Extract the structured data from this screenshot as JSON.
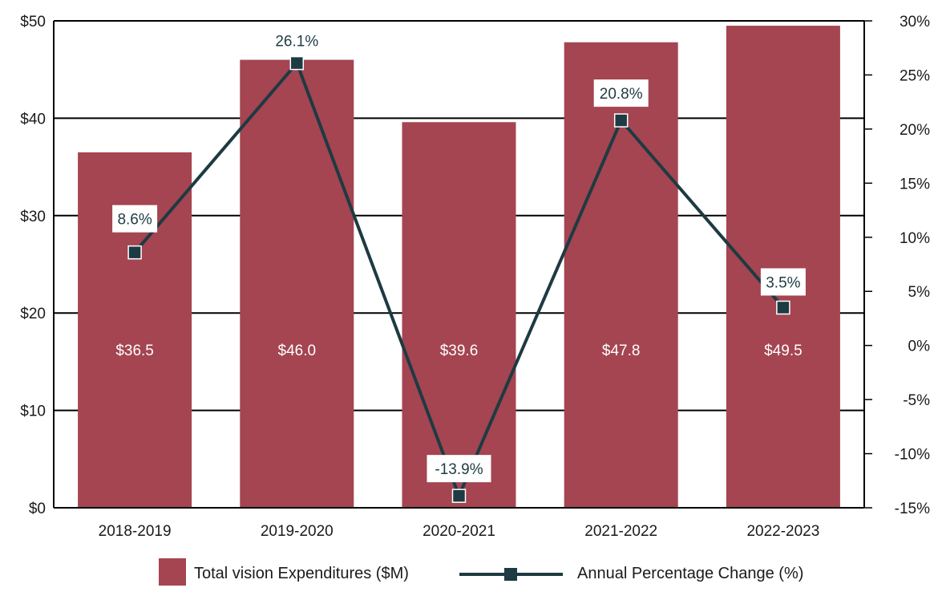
{
  "chart_data": {
    "type": "bar+line",
    "categories": [
      "2018-2019",
      "2019-2020",
      "2020-2021",
      "2021-2022",
      "2022-2023"
    ],
    "series": [
      {
        "name": "Total vision Expenditures ($M)",
        "type": "bar",
        "axis": "left",
        "values": [
          36.5,
          46.0,
          39.6,
          47.8,
          49.5
        ],
        "labels": [
          "$36.5",
          "$46.0",
          "$39.6",
          "$47.8",
          "$49.5"
        ]
      },
      {
        "name": "Annual Percentage Change (%)",
        "type": "line",
        "axis": "right",
        "values": [
          8.6,
          26.1,
          -13.9,
          20.8,
          3.5
        ],
        "labels": [
          "8.6%",
          "26.1%",
          "-13.9%",
          "20.8%",
          "3.5%"
        ]
      }
    ],
    "y_left": {
      "lim": [
        0,
        50
      ],
      "ticks": [
        0,
        10,
        20,
        30,
        40,
        50
      ],
      "tick_labels": [
        "$0",
        "$10",
        "$20",
        "$30",
        "$40",
        "$50"
      ]
    },
    "y_right": {
      "lim": [
        -15,
        30
      ],
      "ticks": [
        -15,
        -10,
        -5,
        0,
        5,
        10,
        15,
        20,
        25,
        30
      ],
      "tick_labels": [
        "-15%",
        "-10%",
        "-5%",
        "0%",
        "5%",
        "10%",
        "15%",
        "20%",
        "25%",
        "30%"
      ]
    },
    "grid": true,
    "legend_position": "bottom",
    "colors": {
      "bar": "#a44551",
      "line": "#1e3a42",
      "marker": "#1e3a42",
      "grid": "#000000"
    }
  }
}
